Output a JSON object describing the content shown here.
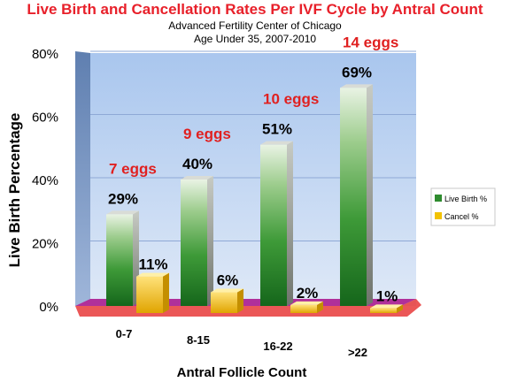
{
  "chart_data": {
    "type": "bar",
    "title": "Live Birth and Cancellation Rates Per IVF Cycle by Antral Count",
    "subtitle": [
      "Advanced Fertility Center of Chicago",
      "Age Under 35, 2007-2010"
    ],
    "xlabel": "Antral Follicle Count",
    "ylabel": "Live Birth Percentage",
    "categories": [
      "0-7",
      "8-15",
      "16-22",
      ">22"
    ],
    "series": [
      {
        "name": "Live Birth %",
        "values": [
          29,
          40,
          51,
          69
        ],
        "labels": [
          "29%",
          "40%",
          "51%",
          "69%"
        ],
        "color": "#2e8b2e"
      },
      {
        "name": "Cancel %",
        "values": [
          11,
          6,
          2,
          1
        ],
        "labels": [
          "11%",
          "6%",
          "2%",
          "1%"
        ],
        "color": "#f2c200"
      }
    ],
    "annotations": [
      "7 eggs",
      "9 eggs",
      "10 eggs",
      "14 eggs"
    ],
    "yticks": [
      "0%",
      "20%",
      "40%",
      "60%",
      "80%"
    ],
    "ylim": [
      0,
      80
    ],
    "grid": true,
    "legend": "right",
    "colors": {
      "title": "#e8202a",
      "annotation": "#e02020",
      "wall": "#b9d3f2",
      "floor": "#b0309a",
      "floor_edge": "#e83a3a"
    }
  }
}
